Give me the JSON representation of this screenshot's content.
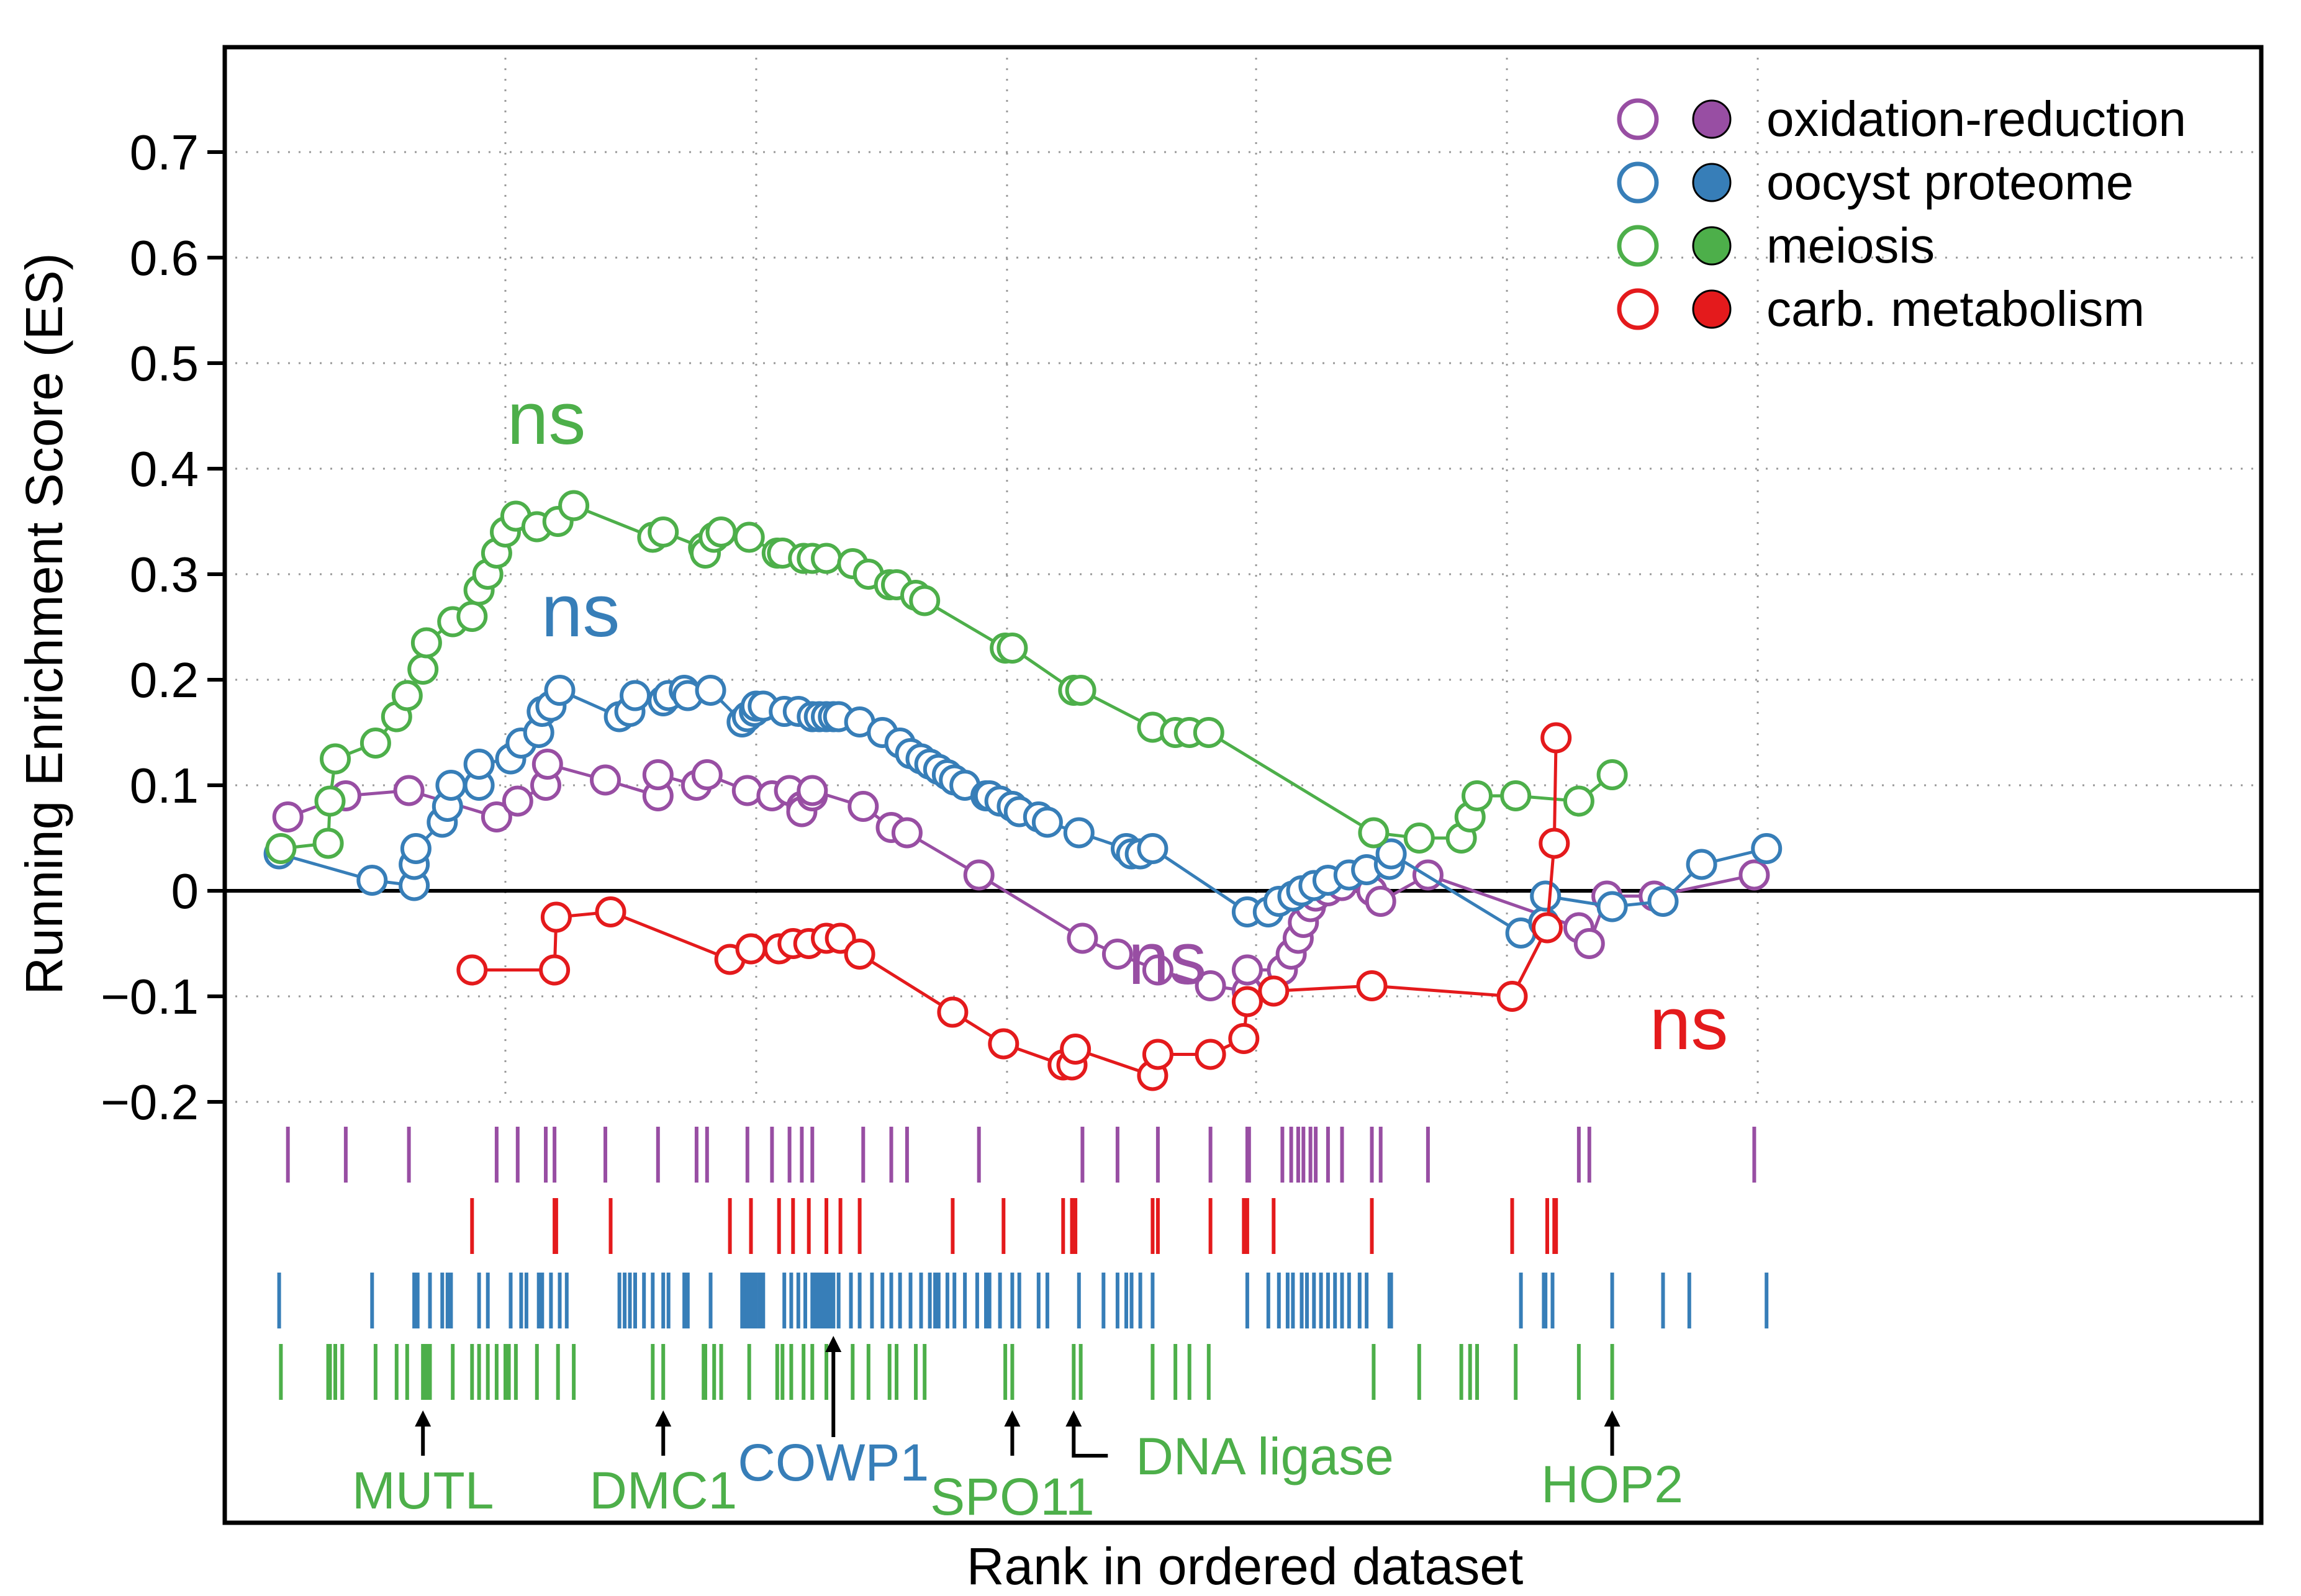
{
  "chart_data": {
    "type": "line",
    "xlabel": "Rank in ordered dataset",
    "ylabel": "Running Enrichment Score (ES)",
    "xlim": [
      0,
      1000
    ],
    "ylim": [
      -0.2,
      0.8
    ],
    "yticks": [
      -0.2,
      -0.1,
      0,
      0.1,
      0.2,
      0.3,
      0.4,
      0.5,
      0.6,
      0.7
    ],
    "ytick_labels": [
      "−0.2",
      "−0.1",
      "0",
      "0.1",
      "0.2",
      "0.3",
      "0.4",
      "0.5",
      "0.6",
      "0.7"
    ],
    "xgrid": [
      143,
      286,
      429,
      571,
      714,
      857
    ],
    "grid": "dotted",
    "legend": {
      "placement": "top-right"
    },
    "series": [
      {
        "name": "oxidation-reduction",
        "color": "#984ea3",
        "significance": "ns",
        "points": [
          [
            19,
            0.07
          ],
          [
            52,
            0.09
          ],
          [
            88,
            0.095
          ],
          [
            138,
            0.07
          ],
          [
            150,
            0.085
          ],
          [
            166,
            0.1
          ],
          [
            167,
            0.12
          ],
          [
            200,
            0.105
          ],
          [
            230,
            0.09
          ],
          [
            230,
            0.11
          ],
          [
            252,
            0.1
          ],
          [
            258,
            0.11
          ],
          [
            281,
            0.095
          ],
          [
            295,
            0.09
          ],
          [
            305,
            0.095
          ],
          [
            312,
            0.08
          ],
          [
            312,
            0.075
          ],
          [
            318,
            0.09
          ],
          [
            318,
            0.095
          ],
          [
            347,
            0.08
          ],
          [
            363,
            0.06
          ],
          [
            372,
            0.055
          ],
          [
            413,
            0.015
          ],
          [
            472,
            -0.045
          ],
          [
            492,
            -0.06
          ],
          [
            515,
            -0.075
          ],
          [
            545,
            -0.09
          ],
          [
            566,
            -0.095
          ],
          [
            566,
            -0.075
          ],
          [
            586,
            -0.075
          ],
          [
            591,
            -0.06
          ],
          [
            595,
            -0.045
          ],
          [
            598,
            -0.03
          ],
          [
            602,
            -0.015
          ],
          [
            605,
            -0.005
          ],
          [
            612,
            0.0
          ],
          [
            620,
            0.005
          ],
          [
            637,
            0.0
          ],
          [
            642,
            -0.01
          ],
          [
            669,
            0.015
          ],
          [
            755,
            -0.035
          ],
          [
            761,
            -0.05
          ],
          [
            771,
            -0.005
          ],
          [
            798,
            -0.005
          ],
          [
            855,
            0.015
          ]
        ]
      },
      {
        "name": "oocyst proteome",
        "color": "#377eb8",
        "significance": "ns",
        "points": [
          [
            14,
            0.035
          ],
          [
            67,
            0.01
          ],
          [
            91,
            0.005
          ],
          [
            91,
            0.025
          ],
          [
            92,
            0.04
          ],
          [
            107,
            0.065
          ],
          [
            110,
            0.08
          ],
          [
            112,
            0.1
          ],
          [
            128,
            0.1
          ],
          [
            128,
            0.12
          ],
          [
            146,
            0.125
          ],
          [
            152,
            0.14
          ],
          [
            162,
            0.15
          ],
          [
            164,
            0.17
          ],
          [
            169,
            0.175
          ],
          [
            174,
            0.19
          ],
          [
            208,
            0.165
          ],
          [
            214,
            0.17
          ],
          [
            217,
            0.185
          ],
          [
            233,
            0.18
          ],
          [
            236,
            0.185
          ],
          [
            245,
            0.19
          ],
          [
            247,
            0.185
          ],
          [
            260,
            0.19
          ],
          [
            278,
            0.16
          ],
          [
            281,
            0.165
          ],
          [
            285,
            0.17
          ],
          [
            286,
            0.175
          ],
          [
            290,
            0.175
          ],
          [
            302,
            0.17
          ],
          [
            310,
            0.17
          ],
          [
            318,
            0.165
          ],
          [
            322,
            0.165
          ],
          [
            326,
            0.165
          ],
          [
            330,
            0.165
          ],
          [
            333,
            0.165
          ],
          [
            345,
            0.16
          ],
          [
            358,
            0.15
          ],
          [
            368,
            0.14
          ],
          [
            374,
            0.13
          ],
          [
            380,
            0.125
          ],
          [
            385,
            0.12
          ],
          [
            390,
            0.115
          ],
          [
            395,
            0.11
          ],
          [
            399,
            0.105
          ],
          [
            405,
            0.1
          ],
          [
            417,
            0.09
          ],
          [
            419,
            0.09
          ],
          [
            425,
            0.085
          ],
          [
            432,
            0.08
          ],
          [
            436,
            0.075
          ],
          [
            447,
            0.07
          ],
          [
            452,
            0.065
          ],
          [
            470,
            0.055
          ],
          [
            497,
            0.04
          ],
          [
            500,
            0.035
          ],
          [
            505,
            0.035
          ],
          [
            512,
            0.04
          ],
          [
            566,
            -0.02
          ],
          [
            578,
            -0.02
          ],
          [
            584,
            -0.01
          ],
          [
            592,
            -0.005
          ],
          [
            597,
            0.0
          ],
          [
            604,
            0.005
          ],
          [
            612,
            0.01
          ],
          [
            624,
            0.015
          ],
          [
            634,
            0.02
          ],
          [
            647,
            0.025
          ],
          [
            648,
            0.035
          ],
          [
            722,
            -0.04
          ],
          [
            735,
            -0.03
          ],
          [
            736,
            -0.005
          ],
          [
            774,
            -0.015
          ],
          [
            803,
            -0.01
          ],
          [
            825,
            0.025
          ],
          [
            862,
            0.04
          ]
        ]
      },
      {
        "name": "meiosis",
        "color": "#4daf4a",
        "significance": "ns",
        "points": [
          [
            15,
            0.04
          ],
          [
            42,
            0.045
          ],
          [
            43,
            0.085
          ],
          [
            46,
            0.125
          ],
          [
            69,
            0.14
          ],
          [
            87,
            0.185
          ],
          [
            81,
            0.165
          ],
          [
            96,
            0.21
          ],
          [
            98,
            0.235
          ],
          [
            113,
            0.255
          ],
          [
            124,
            0.26
          ],
          [
            128,
            0.285
          ],
          [
            133,
            0.3
          ],
          [
            138,
            0.32
          ],
          [
            143,
            0.34
          ],
          [
            149,
            0.355
          ],
          [
            161,
            0.345
          ],
          [
            173,
            0.35
          ],
          [
            182,
            0.365
          ],
          [
            227,
            0.335
          ],
          [
            233,
            0.34
          ],
          [
            256,
            0.325
          ],
          [
            257,
            0.32
          ],
          [
            262,
            0.335
          ],
          [
            266,
            0.34
          ],
          [
            282,
            0.335
          ],
          [
            298,
            0.32
          ],
          [
            301,
            0.32
          ],
          [
            313,
            0.315
          ],
          [
            318,
            0.315
          ],
          [
            326,
            0.315
          ],
          [
            341,
            0.31
          ],
          [
            350,
            0.3
          ],
          [
            362,
            0.29
          ],
          [
            366,
            0.29
          ],
          [
            377,
            0.28
          ],
          [
            382,
            0.275
          ],
          [
            428,
            0.23
          ],
          [
            432,
            0.23
          ],
          [
            467,
            0.19
          ],
          [
            471,
            0.19
          ],
          [
            512,
            0.155
          ],
          [
            525,
            0.15
          ],
          [
            533,
            0.15
          ],
          [
            544,
            0.15
          ],
          [
            638,
            0.055
          ],
          [
            664,
            0.05
          ],
          [
            688,
            0.05
          ],
          [
            693,
            0.07
          ],
          [
            697,
            0.09
          ],
          [
            719,
            0.09
          ],
          [
            755,
            0.085
          ],
          [
            774,
            0.11
          ]
        ]
      },
      {
        "name": "carb. metabolism",
        "color": "#e41a1c",
        "significance": "ns",
        "points": [
          [
            124,
            -0.075
          ],
          [
            171,
            -0.075
          ],
          [
            172,
            -0.025
          ],
          [
            203,
            -0.02
          ],
          [
            271,
            -0.065
          ],
          [
            283,
            -0.055
          ],
          [
            299,
            -0.055
          ],
          [
            307,
            -0.05
          ],
          [
            316,
            -0.05
          ],
          [
            326,
            -0.045
          ],
          [
            334,
            -0.045
          ],
          [
            345,
            -0.06
          ],
          [
            398,
            -0.115
          ],
          [
            427,
            -0.145
          ],
          [
            461,
            -0.165
          ],
          [
            466,
            -0.165
          ],
          [
            468,
            -0.15
          ],
          [
            512,
            -0.175
          ],
          [
            515,
            -0.155
          ],
          [
            545,
            -0.155
          ],
          [
            564,
            -0.14
          ],
          [
            566,
            -0.105
          ],
          [
            581,
            -0.095
          ],
          [
            637,
            -0.09
          ],
          [
            717,
            -0.1
          ],
          [
            737,
            -0.035
          ],
          [
            741,
            0.045
          ],
          [
            742,
            0.145
          ]
        ]
      }
    ],
    "rugs": [
      {
        "name": "oxidation-reduction",
        "color": "#984ea3",
        "ranks": [
          19,
          52,
          88,
          138,
          150,
          166,
          171,
          200,
          230,
          252,
          258,
          281,
          295,
          305,
          312,
          318,
          347,
          363,
          372,
          413,
          472,
          492,
          515,
          545,
          566,
          567,
          586,
          591,
          595,
          598,
          602,
          605,
          612,
          620,
          637,
          642,
          669,
          755,
          761,
          855
        ]
      },
      {
        "name": "carb. metabolism",
        "color": "#e41a1c",
        "ranks": [
          124,
          171,
          172,
          203,
          271,
          283,
          299,
          307,
          316,
          326,
          334,
          345,
          398,
          427,
          461,
          466,
          468,
          512,
          515,
          545,
          564,
          566,
          581,
          637,
          717,
          737,
          741,
          742
        ]
      },
      {
        "name": "oocyst proteome",
        "color": "#377eb8",
        "ranks": [
          14,
          67,
          91,
          92,
          93,
          100,
          107,
          110,
          112,
          128,
          133,
          146,
          152,
          155,
          162,
          164,
          169,
          174,
          178,
          208,
          211,
          214,
          217,
          222,
          227,
          233,
          236,
          245,
          247,
          260,
          278,
          280,
          281,
          283,
          285,
          286,
          288,
          290,
          302,
          306,
          310,
          314,
          318,
          320,
          322,
          324,
          326,
          328,
          330,
          333,
          340,
          345,
          352,
          358,
          363,
          368,
          374,
          380,
          385,
          388,
          390,
          395,
          399,
          405,
          412,
          417,
          419,
          425,
          432,
          436,
          447,
          452,
          470,
          484,
          492,
          497,
          500,
          505,
          512,
          566,
          578,
          584,
          589,
          592,
          597,
          600,
          604,
          608,
          612,
          616,
          620,
          624,
          630,
          634,
          647,
          648,
          722,
          735,
          736,
          740,
          774,
          803,
          818,
          862
        ]
      },
      {
        "name": "meiosis",
        "color": "#4daf4a",
        "ranks": [
          15,
          42,
          43,
          46,
          50,
          69,
          81,
          87,
          96,
          98,
          100,
          113,
          124,
          128,
          133,
          138,
          143,
          145,
          149,
          161,
          173,
          182,
          227,
          233,
          256,
          257,
          262,
          266,
          282,
          298,
          301,
          306,
          313,
          318,
          326,
          341,
          350,
          362,
          366,
          377,
          382,
          428,
          432,
          467,
          471,
          512,
          525,
          533,
          544,
          638,
          664,
          688,
          693,
          697,
          719,
          755,
          774
        ]
      }
    ],
    "gene_annotations": [
      {
        "label": "MUTL",
        "rank": 96,
        "color": "#4daf4a"
      },
      {
        "label": "DMC1",
        "rank": 233,
        "color": "#4daf4a"
      },
      {
        "label": "COWP1",
        "rank": 330,
        "color": "#377eb8"
      },
      {
        "label": "SPO11",
        "rank": 432,
        "color": "#4daf4a"
      },
      {
        "label": "DNA ligase",
        "rank": 467,
        "color": "#4daf4a"
      },
      {
        "label": "HOP2",
        "rank": 774,
        "color": "#4daf4a"
      }
    ]
  }
}
